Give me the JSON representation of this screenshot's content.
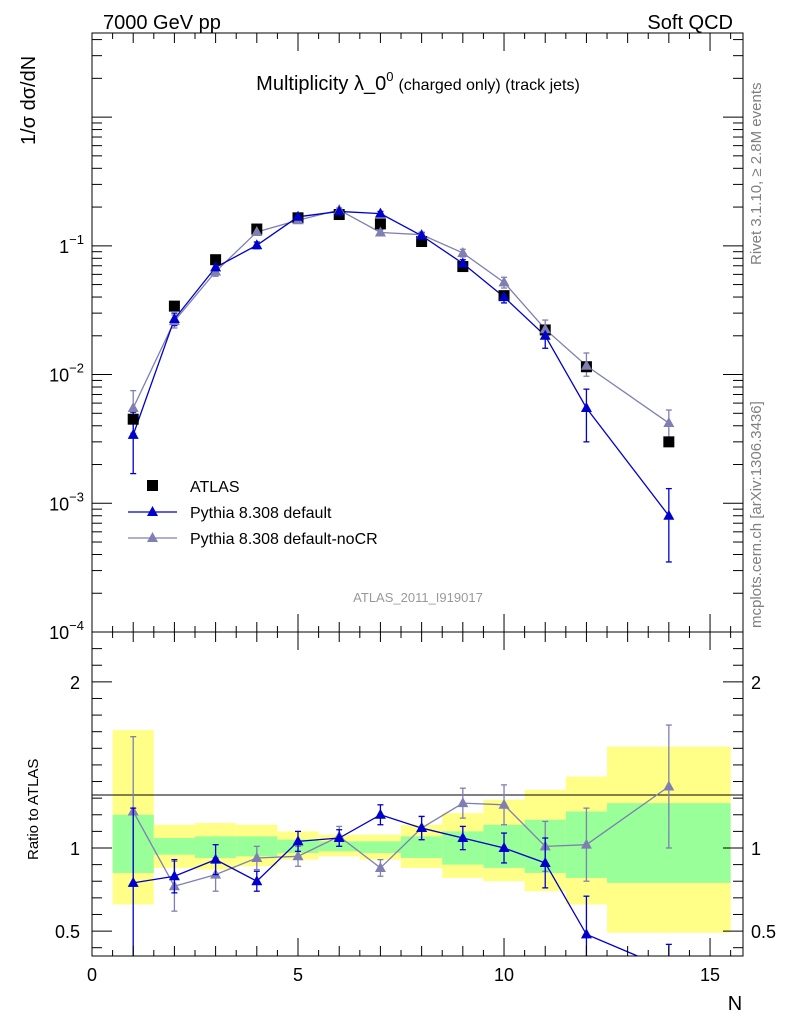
{
  "header": {
    "left": "7000 GeV pp",
    "right": "Soft QCD",
    "title_main": "Multiplicity λ_0",
    "title_sup": "0",
    "title_rest": "(charged only) (track jets)",
    "side_top": "Rivet 3.1.10, ≥ 2.8M events",
    "side_bottom": "mcplots.cern.ch [arXiv:1306.3436]",
    "analysis_id": "ATLAS_2011_I919017"
  },
  "colors": {
    "data": "#000000",
    "default": "#0000cc",
    "nocr": "#7f7fb2",
    "band_inner": "#99ff99",
    "band_outer": "#ffff88"
  },
  "chart_data": [
    {
      "type": "scatter",
      "ylabel": "1/σ dσ/dN",
      "yscale": "log",
      "ylim": [
        0.0001,
        4.5
      ],
      "xlim": [
        0,
        15.8
      ],
      "y_tick_labels": [
        "10",
        "10",
        "10",
        "1"
      ],
      "y_tick_exponents": [
        "−4",
        "−3",
        "−2",
        "−1"
      ],
      "legend": {
        "placement": "bottom-left",
        "entries": [
          "ATLAS",
          "Pythia 8.308 default",
          "Pythia 8.308 default-noCR"
        ]
      },
      "x": [
        1,
        2,
        3,
        4,
        5,
        6,
        7,
        8,
        9,
        10,
        11,
        12,
        14
      ],
      "series": [
        {
          "name": "ATLAS",
          "marker": "square",
          "values": [
            0.0045,
            0.034,
            0.078,
            0.135,
            0.165,
            0.175,
            0.148,
            0.108,
            0.069,
            0.041,
            0.0222,
            0.0115,
            0.003
          ]
        },
        {
          "name": "Pythia 8.308 default",
          "marker": "triangle",
          "values": [
            0.0034,
            0.027,
            0.068,
            0.101,
            0.168,
            0.185,
            0.178,
            0.12,
            0.073,
            0.04,
            0.02,
            0.0055,
            0.0008
          ],
          "err_lo": [
            0.0017,
            0.003,
            0.006,
            0.006,
            0.007,
            0.007,
            0.007,
            0.006,
            0.005,
            0.004,
            0.004,
            0.0025,
            0.00045
          ],
          "err_hi": [
            0.0017,
            0.003,
            0.006,
            0.006,
            0.007,
            0.007,
            0.007,
            0.006,
            0.005,
            0.004,
            0.004,
            0.0022,
            0.0005
          ]
        },
        {
          "name": "Pythia 8.308 default-noCR",
          "marker": "triangle",
          "values": [
            0.0055,
            0.026,
            0.063,
            0.128,
            0.158,
            0.19,
            0.127,
            0.122,
            0.088,
            0.052,
            0.0225,
            0.0117,
            0.0042
          ],
          "err_lo": [
            0.002,
            0.003,
            0.005,
            0.006,
            0.007,
            0.007,
            0.006,
            0.006,
            0.006,
            0.005,
            0.003,
            0.002,
            0.0011
          ],
          "err_hi": [
            0.002,
            0.003,
            0.005,
            0.006,
            0.007,
            0.007,
            0.006,
            0.006,
            0.006,
            0.005,
            0.004,
            0.003,
            0.0011
          ]
        }
      ]
    },
    {
      "type": "scatter",
      "xlabel": "N",
      "ylabel": "Ratio to ATLAS",
      "ylim": [
        0.35,
        2.3
      ],
      "xlim": [
        0,
        15.8
      ],
      "x_tick_labels": [
        "0",
        "5",
        "10",
        "15"
      ],
      "y_tick_labels": [
        "0.5",
        "1",
        "2"
      ],
      "bands": {
        "edges": [
          0.5,
          1.5,
          2.5,
          3.5,
          4.5,
          5.5,
          6.5,
          7.5,
          8.5,
          9.5,
          10.5,
          11.5,
          12.5,
          15.5
        ],
        "inner_lo": [
          0.85,
          0.96,
          0.94,
          0.95,
          0.97,
          0.98,
          0.97,
          0.94,
          0.9,
          0.88,
          0.85,
          0.82,
          0.79
        ],
        "inner_hi": [
          1.2,
          1.06,
          1.07,
          1.07,
          1.05,
          1.04,
          1.04,
          1.07,
          1.1,
          1.14,
          1.17,
          1.22,
          1.27
        ],
        "outer_lo": [
          0.66,
          0.88,
          0.87,
          0.89,
          0.93,
          0.95,
          0.93,
          0.88,
          0.82,
          0.8,
          0.74,
          0.66,
          0.49
        ],
        "outer_hi": [
          1.71,
          1.14,
          1.15,
          1.14,
          1.1,
          1.08,
          1.08,
          1.14,
          1.21,
          1.29,
          1.35,
          1.43,
          1.61
        ]
      },
      "x": [
        1,
        2,
        3,
        4,
        5,
        6,
        7,
        8,
        9,
        10,
        11,
        12,
        14
      ],
      "series": [
        {
          "name": "Pythia 8.308 default",
          "values": [
            0.79,
            0.83,
            0.93,
            0.8,
            1.04,
            1.06,
            1.2,
            1.12,
            1.06,
            1.0,
            0.91,
            0.48,
            0.27
          ],
          "err_lo": [
            0.45,
            0.1,
            0.09,
            0.06,
            0.06,
            0.05,
            0.06,
            0.07,
            0.07,
            0.09,
            0.15,
            0.17,
            0.15
          ],
          "err_hi": [
            0.45,
            0.1,
            0.09,
            0.06,
            0.06,
            0.05,
            0.06,
            0.07,
            0.07,
            0.09,
            0.15,
            0.23,
            0.15
          ]
        },
        {
          "name": "Pythia 8.308 default-noCR",
          "values": [
            1.22,
            0.77,
            0.84,
            0.94,
            0.95,
            1.07,
            0.88,
            1.12,
            1.27,
            1.26,
            1.01,
            1.02,
            1.37
          ],
          "err_lo": [
            0.45,
            0.15,
            0.1,
            0.07,
            0.06,
            0.06,
            0.05,
            0.07,
            0.09,
            0.12,
            0.15,
            0.22,
            0.37
          ],
          "err_hi": [
            0.45,
            0.15,
            0.1,
            0.07,
            0.06,
            0.06,
            0.05,
            0.07,
            0.09,
            0.12,
            0.15,
            0.22,
            0.37
          ]
        }
      ]
    }
  ]
}
